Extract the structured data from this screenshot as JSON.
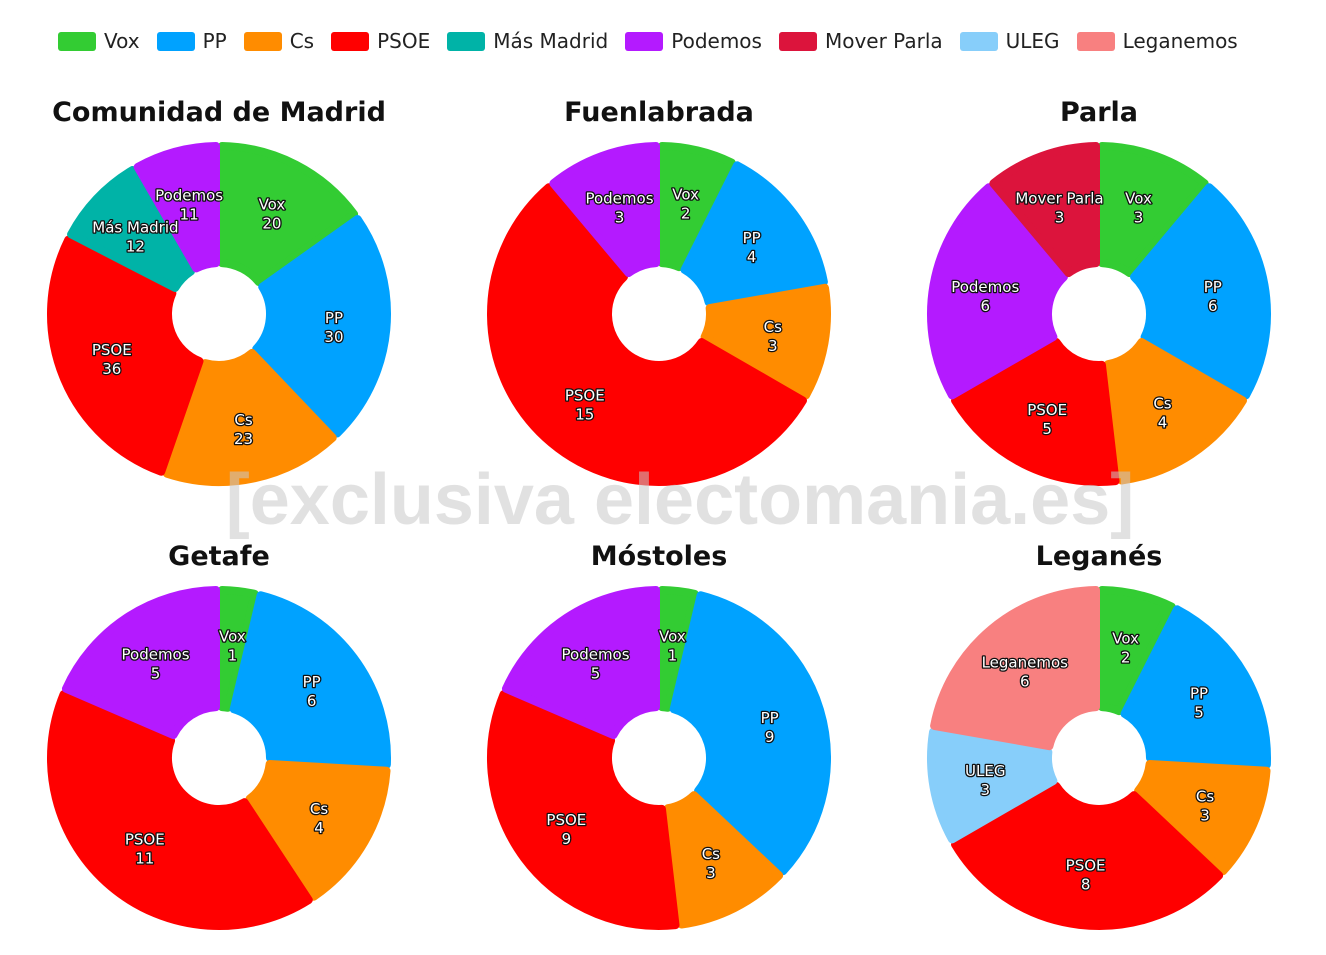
{
  "legend": [
    {
      "name": "Vox",
      "color": "#33cc33"
    },
    {
      "name": "PP",
      "color": "#00a2ff"
    },
    {
      "name": "Cs",
      "color": "#ff8c00"
    },
    {
      "name": "PSOE",
      "color": "#ff0000"
    },
    {
      "name": "Más Madrid",
      "color": "#00b3a7"
    },
    {
      "name": "Podemos",
      "color": "#b41aff"
    },
    {
      "name": "Mover Parla",
      "color": "#dc143c"
    },
    {
      "name": "ULEG",
      "color": "#87cefa"
    },
    {
      "name": "Leganemos",
      "color": "#f88080"
    }
  ],
  "watermark": "[exclusiva electomania.es]",
  "chart_data": [
    {
      "type": "pie",
      "title": "Comunidad de Madrid",
      "slices": [
        {
          "label": "Vox",
          "value": 20
        },
        {
          "label": "PP",
          "value": 30
        },
        {
          "label": "Cs",
          "value": 23
        },
        {
          "label": "PSOE",
          "value": 36
        },
        {
          "label": "Más Madrid",
          "value": 12
        },
        {
          "label": "Podemos",
          "value": 11
        }
      ]
    },
    {
      "type": "pie",
      "title": "Fuenlabrada",
      "slices": [
        {
          "label": "Vox",
          "value": 2
        },
        {
          "label": "PP",
          "value": 4
        },
        {
          "label": "Cs",
          "value": 3
        },
        {
          "label": "PSOE",
          "value": 15
        },
        {
          "label": "Podemos",
          "value": 3
        }
      ]
    },
    {
      "type": "pie",
      "title": "Parla",
      "slices": [
        {
          "label": "Vox",
          "value": 3
        },
        {
          "label": "PP",
          "value": 6
        },
        {
          "label": "Cs",
          "value": 4
        },
        {
          "label": "PSOE",
          "value": 5
        },
        {
          "label": "Podemos",
          "value": 6
        },
        {
          "label": "Mover Parla",
          "value": 3
        }
      ]
    },
    {
      "type": "pie",
      "title": "Getafe",
      "slices": [
        {
          "label": "Vox",
          "value": 1
        },
        {
          "label": "PP",
          "value": 6
        },
        {
          "label": "Cs",
          "value": 4
        },
        {
          "label": "PSOE",
          "value": 11
        },
        {
          "label": "Podemos",
          "value": 5
        }
      ]
    },
    {
      "type": "pie",
      "title": "Móstoles",
      "slices": [
        {
          "label": "Vox",
          "value": 1
        },
        {
          "label": "PP",
          "value": 9
        },
        {
          "label": "Cs",
          "value": 3
        },
        {
          "label": "PSOE",
          "value": 9
        },
        {
          "label": "Podemos",
          "value": 5
        }
      ]
    },
    {
      "type": "pie",
      "title": "Leganés",
      "slices": [
        {
          "label": "Vox",
          "value": 2
        },
        {
          "label": "PP",
          "value": 5
        },
        {
          "label": "Cs",
          "value": 3
        },
        {
          "label": "PSOE",
          "value": 8
        },
        {
          "label": "ULEG",
          "value": 3
        },
        {
          "label": "Leganemos",
          "value": 6
        }
      ]
    }
  ]
}
